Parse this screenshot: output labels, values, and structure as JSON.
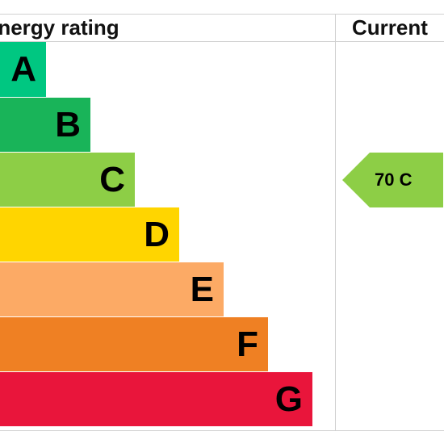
{
  "headers": {
    "rating": "Energy rating",
    "current": "Current"
  },
  "chart_data": {
    "type": "bar",
    "categories": [
      "A",
      "B",
      "C",
      "D",
      "E",
      "F",
      "G"
    ],
    "colors": [
      "#00c781",
      "#19b459",
      "#8dce46",
      "#ffd500",
      "#fcaa65",
      "#ef8023",
      "#e9153b"
    ],
    "current": {
      "score": 70,
      "band": "C",
      "label": "70 C",
      "color": "#8dce46"
    }
  }
}
